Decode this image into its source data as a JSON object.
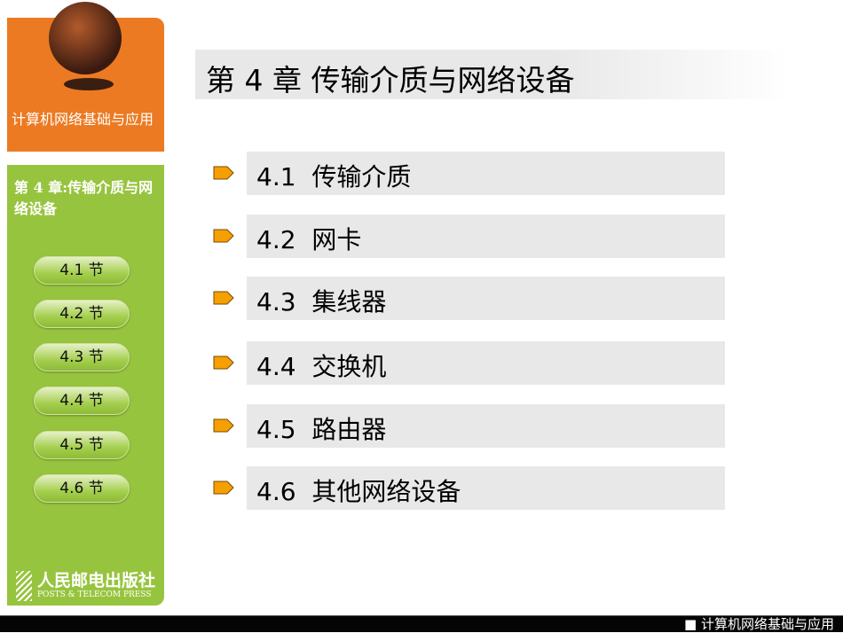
{
  "sidebar": {
    "course_title": "计算机网络基础与应用",
    "chapter_title": "第 4 章:传输介质与网络设备",
    "sections": [
      "4.1 节",
      "4.2 节",
      "4.3 节",
      "4.4 节",
      "4.5 节",
      "4.6 节"
    ],
    "publisher_cn": "人民邮电出版社",
    "publisher_en": "POSTS & TELECOM PRESS"
  },
  "main": {
    "title": "第 4 章  传输介质与网络设备",
    "items": [
      "4.1  传输介质",
      "4.2  网卡",
      "4.3  集线器",
      "4.4  交换机",
      "4.5  路由器",
      "4.6  其他网络设备"
    ]
  },
  "footer": {
    "text": "■ 计算机网络基础与应用"
  },
  "colors": {
    "orange": "#ec7a22",
    "green": "#97c43e",
    "bullet": "#f5a000"
  }
}
